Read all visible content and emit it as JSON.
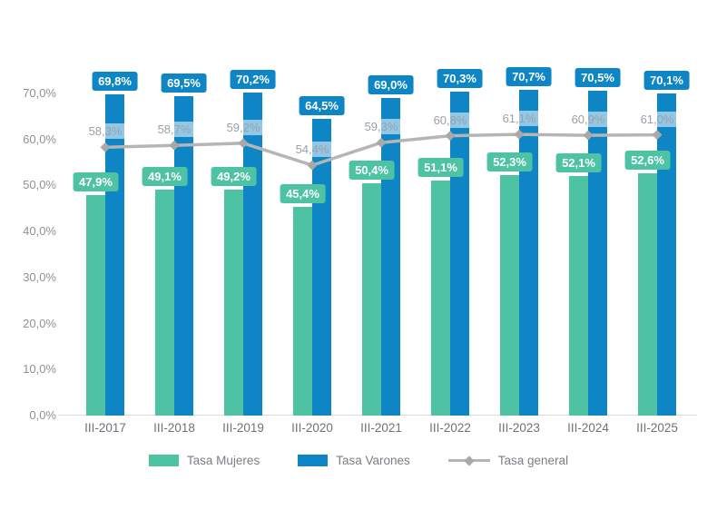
{
  "page": {
    "background": "#ffffff"
  },
  "chart_data": {
    "type": "bar",
    "title": "",
    "xlabel": "",
    "ylabel": "",
    "categories": [
      "III-2017",
      "III-2018",
      "III-2019",
      "III-2020",
      "III-2021",
      "III-2022",
      "III-2023",
      "III-2024",
      "III-2025"
    ],
    "series": [
      {
        "name": "Tasa Mujeres",
        "type": "bar",
        "color": "#4ec3a4",
        "values": [
          47.9,
          49.1,
          49.2,
          45.4,
          50.4,
          51.1,
          52.3,
          52.1,
          52.6
        ],
        "labels": [
          "47,9%",
          "49,1%",
          "49,2%",
          "45,4%",
          "50,4%",
          "51,1%",
          "52,3%",
          "52,1%",
          "52,6%"
        ]
      },
      {
        "name": "Tasa Varones",
        "type": "bar",
        "color": "#0e86c6",
        "values": [
          69.8,
          69.5,
          70.2,
          64.5,
          69.0,
          70.3,
          70.7,
          70.5,
          70.1
        ],
        "labels": [
          "69,8%",
          "69,5%",
          "70,2%",
          "64,5%",
          "69,0%",
          "70,3%",
          "70,7%",
          "70,5%",
          "70,1%"
        ]
      },
      {
        "name": "Tasa general",
        "type": "line",
        "color": "#b5b5b5",
        "marker_color": "#a8a8a8",
        "label_text_color": "#9aa1a9",
        "values": [
          58.3,
          58.7,
          59.2,
          54.4,
          59.3,
          60.8,
          61.1,
          60.9,
          61.0
        ],
        "labels": [
          "58,3%",
          "58,7%",
          "59,2%",
          "54,4%",
          "59,3%",
          "60,8%",
          "61,1%",
          "60,9%",
          "61,0%"
        ]
      }
    ],
    "ylim": [
      0,
      70
    ],
    "yticks": [
      0,
      10,
      20,
      30,
      40,
      50,
      60,
      70
    ],
    "ytick_labels": [
      "0,0%",
      "10,0%",
      "20,0%",
      "30,0%",
      "40,0%",
      "50,0%",
      "60,0%",
      "70,0%"
    ],
    "grid": false,
    "legend_position": "bottom",
    "axis_text_color": "#8d9298",
    "value_label_text_color": "#ffffff"
  },
  "legend": {
    "items": [
      {
        "label": "Tasa Mujeres",
        "swatch": "bar",
        "color": "#4ec3a4"
      },
      {
        "label": "Tasa Varones",
        "swatch": "bar",
        "color": "#0e86c6"
      },
      {
        "label": "Tasa general",
        "swatch": "line",
        "color": "#b5b5b5",
        "marker_color": "#a8a8a8"
      }
    ]
  }
}
